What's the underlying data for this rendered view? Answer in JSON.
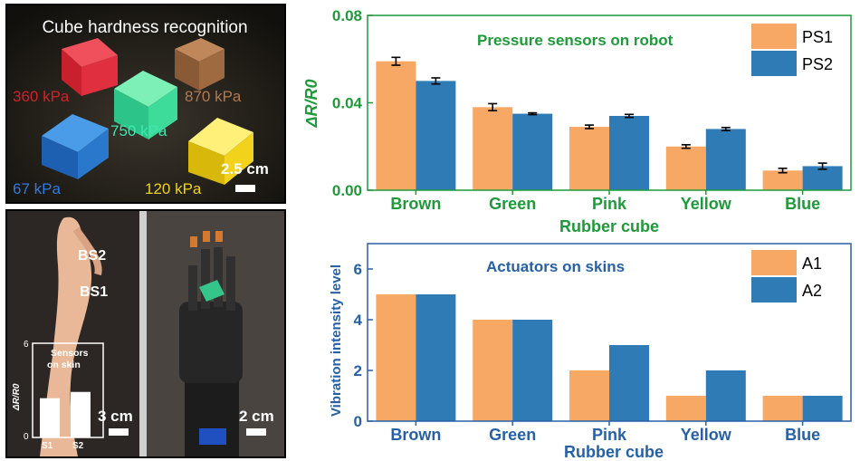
{
  "photo_top": {
    "title": "Cube hardness recognition",
    "cube_labels": [
      {
        "text": "360 kPa",
        "color": "#d0222a"
      },
      {
        "text": "870 kPa",
        "color": "#b07a50"
      },
      {
        "text": "750 kPa",
        "color": "#3ee6b0"
      },
      {
        "text": "67 kPa",
        "color": "#2f7be0"
      },
      {
        "text": "120 kPa",
        "color": "#f0d21a"
      }
    ],
    "scale_label": "2.5 cm"
  },
  "photo_bottom_left": {
    "sensor1": "BS2",
    "sensor2": "BS1",
    "inset": {
      "title_line1": "Sensors",
      "title_line2": "on skin",
      "ylabel": "ΔR/R0",
      "ytick_top": "6",
      "ytick_bottom": "0",
      "categories": [
        "S1",
        "S2"
      ],
      "values": [
        2.5,
        2.9
      ],
      "ylim": [
        0,
        6
      ]
    },
    "scale_label": "3 cm"
  },
  "photo_bottom_right": {
    "scale_label": "2 cm"
  },
  "chart_data": [
    {
      "type": "bar",
      "title": "Pressure sensors on robot",
      "xlabel": "Rubber cube",
      "ylabel": "ΔR/R0",
      "categories": [
        "Brown",
        "Green",
        "Pink",
        "Yellow",
        "Blue"
      ],
      "series": [
        {
          "name": "PS1",
          "values": [
            0.059,
            0.038,
            0.029,
            0.02,
            0.009
          ],
          "errors": [
            0.0018,
            0.0016,
            0.0008,
            0.0008,
            0.001
          ],
          "color": "#f8a865"
        },
        {
          "name": "PS2",
          "values": [
            0.05,
            0.035,
            0.034,
            0.028,
            0.011
          ],
          "errors": [
            0.0014,
            0.0004,
            0.0007,
            0.0007,
            0.0014
          ],
          "color": "#2e7bb6"
        }
      ],
      "ylim": [
        0,
        0.08
      ],
      "yticks": [
        "0.00",
        "0.04",
        "0.08"
      ],
      "label_color": "#1f9a3a",
      "legend": "top-right"
    },
    {
      "type": "bar",
      "title": "Actuators on skins",
      "xlabel": "Rubber cube",
      "ylabel": "Vibration intensity level",
      "categories": [
        "Brown",
        "Green",
        "Pink",
        "Yellow",
        "Blue"
      ],
      "series": [
        {
          "name": "A1",
          "values": [
            5,
            4,
            2,
            1,
            1
          ],
          "color": "#f8a865"
        },
        {
          "name": "A2",
          "values": [
            5,
            4,
            3,
            2,
            1
          ],
          "color": "#2e7bb6"
        }
      ],
      "ylim": [
        0,
        7
      ],
      "yticks": [
        "0",
        "2",
        "4",
        "6"
      ],
      "label_color": "#2661a8",
      "legend": "top-right"
    }
  ]
}
